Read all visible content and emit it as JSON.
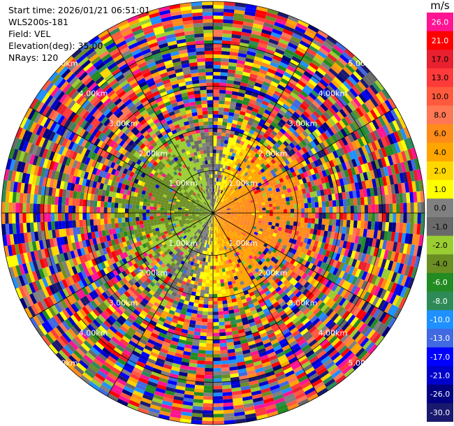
{
  "header": {
    "start_time": "Start time: 2026/01/21 06:51:01",
    "instrument": "WLS200s-181",
    "field": "Field: VEL",
    "elevation": "Elevation(deg): 35.00",
    "nrays": "NRays: 120"
  },
  "chart_data": {
    "type": "heatmap",
    "projection": "polar-ppi",
    "field": "VEL",
    "n_rays": 120,
    "max_range_km": 5.0,
    "range_ring_labels": [
      "1.00km",
      "2.00km",
      "3.00km",
      "4.00km",
      "5.00km"
    ],
    "range_ring_km": [
      1,
      2,
      3,
      4,
      5
    ],
    "grid": true,
    "colorbar": {
      "unit": "m/s",
      "placement": "right",
      "tick_labels": [
        "26.0",
        "21.0",
        "17.0",
        "13.0",
        "10.0",
        "8.0",
        "6.0",
        "4.0",
        "2.0",
        "1.0",
        "0.0",
        "-1.0",
        "-2.0",
        "-4.0",
        "-6.0",
        "-8.0",
        "-10.0",
        "-13.0",
        "-17.0",
        "-21.0",
        "-26.0",
        "-30.0"
      ],
      "colors": [
        "#ff1493",
        "#ff0000",
        "#e8202f",
        "#ff3a3a",
        "#ff5a3d",
        "#ff7755",
        "#ff8c1a",
        "#ffa500",
        "#ffd700",
        "#ffff00",
        "#808080",
        "#696969",
        "#9acd32",
        "#6b8e23",
        "#228b22",
        "#2e8b57",
        "#1e90ff",
        "#4169e1",
        "#0000ff",
        "#0000cd",
        "#000080",
        "#191970"
      ]
    }
  }
}
